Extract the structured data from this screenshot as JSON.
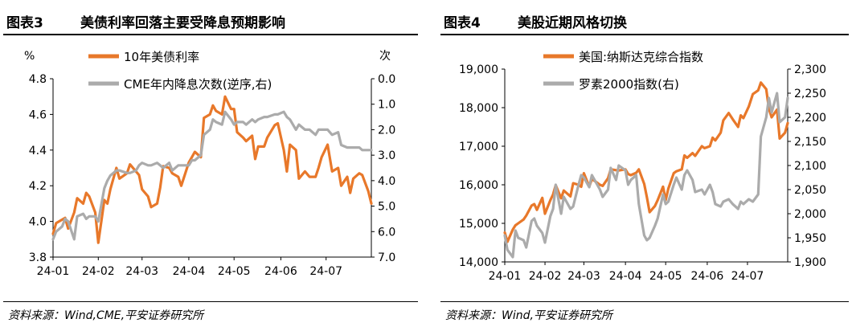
{
  "charts": [
    {
      "fig_label": "图表3",
      "title": "美债利率回落主要受降息预期影响",
      "source": "资料来源：Wind,CME,平安证券研究所",
      "left_unit": "%",
      "right_unit": "次",
      "legend": [
        "10年美债利率",
        "CME年内降息次数(逆序,右)"
      ],
      "colors": {
        "primary": "#E8782A",
        "secondary": "#ABABAB"
      }
    },
    {
      "fig_label": "图表4",
      "title": "美股近期风格切换",
      "source": "资料来源：Wind,平安证券研究所",
      "left_unit": "",
      "right_unit": "",
      "legend": [
        "美国:纳斯达克综合指数",
        "罗素2000指数(右)"
      ],
      "colors": {
        "primary": "#E8782A",
        "secondary": "#ABABAB"
      }
    }
  ],
  "chart_data": [
    {
      "type": "line",
      "x_ticks": [
        "24-01",
        "24-02",
        "24-03",
        "24-04",
        "24-05",
        "24-06",
        "24-07"
      ],
      "x_range": [
        "2024-01-02",
        "2024-07-31"
      ],
      "left_axis": {
        "ticks": [
          "3.8",
          "4.0",
          "4.2",
          "4.4",
          "4.6",
          "4.8"
        ],
        "range": [
          3.8,
          4.8
        ]
      },
      "right_axis": {
        "ticks": [
          "0.0",
          "1.0",
          "2.0",
          "3.0",
          "4.0",
          "5.0",
          "6.0",
          "7.0"
        ],
        "range": [
          0,
          7
        ],
        "inverted": true
      },
      "series": [
        {
          "name": "10年美债利率",
          "axis": "left",
          "x": [
            "2024-01-02",
            "2024-01-04",
            "2024-01-08",
            "2024-01-10",
            "2024-01-12",
            "2024-01-16",
            "2024-01-18",
            "2024-01-22",
            "2024-01-24",
            "2024-01-26",
            "2024-01-30",
            "2024-02-01",
            "2024-02-05",
            "2024-02-07",
            "2024-02-09",
            "2024-02-13",
            "2024-02-15",
            "2024-02-20",
            "2024-02-22",
            "2024-02-26",
            "2024-02-28",
            "2024-03-01",
            "2024-03-05",
            "2024-03-07",
            "2024-03-11",
            "2024-03-13",
            "2024-03-15",
            "2024-03-19",
            "2024-03-21",
            "2024-03-25",
            "2024-03-27",
            "2024-04-01",
            "2024-04-03",
            "2024-04-05",
            "2024-04-09",
            "2024-04-11",
            "2024-04-15",
            "2024-04-17",
            "2024-04-19",
            "2024-04-23",
            "2024-04-25",
            "2024-04-29",
            "2024-05-01",
            "2024-05-03",
            "2024-05-07",
            "2024-05-09",
            "2024-05-13",
            "2024-05-15",
            "2024-05-17",
            "2024-05-21",
            "2024-05-23",
            "2024-05-28",
            "2024-05-30",
            "2024-06-03",
            "2024-06-05",
            "2024-06-07",
            "2024-06-11",
            "2024-06-13",
            "2024-06-17",
            "2024-06-20",
            "2024-06-24",
            "2024-06-26",
            "2024-06-28",
            "2024-07-02",
            "2024-07-05",
            "2024-07-09",
            "2024-07-11",
            "2024-07-15",
            "2024-07-17",
            "2024-07-19",
            "2024-07-23",
            "2024-07-25",
            "2024-07-29",
            "2024-07-31"
          ],
          "values": [
            3.93,
            3.99,
            4.01,
            4.02,
            3.96,
            4.05,
            4.13,
            4.1,
            4.16,
            4.14,
            4.05,
            3.88,
            4.12,
            4.1,
            4.18,
            4.3,
            4.24,
            4.27,
            4.32,
            4.28,
            4.26,
            4.18,
            4.14,
            4.08,
            4.1,
            4.19,
            4.31,
            4.3,
            4.27,
            4.25,
            4.2,
            4.33,
            4.36,
            4.39,
            4.36,
            4.58,
            4.6,
            4.65,
            4.62,
            4.6,
            4.7,
            4.63,
            4.63,
            4.5,
            4.47,
            4.45,
            4.48,
            4.35,
            4.42,
            4.42,
            4.47,
            4.54,
            4.55,
            4.4,
            4.28,
            4.43,
            4.4,
            4.24,
            4.28,
            4.25,
            4.25,
            4.3,
            4.36,
            4.43,
            4.28,
            4.3,
            4.2,
            4.25,
            4.16,
            4.24,
            4.27,
            4.26,
            4.17,
            4.1
          ]
        },
        {
          "name": "CME年内降息次数(逆序,右)",
          "axis": "right",
          "x": [
            "2024-01-02",
            "2024-01-04",
            "2024-01-08",
            "2024-01-10",
            "2024-01-12",
            "2024-01-16",
            "2024-01-18",
            "2024-01-22",
            "2024-01-24",
            "2024-01-26",
            "2024-01-30",
            "2024-02-01",
            "2024-02-05",
            "2024-02-07",
            "2024-02-09",
            "2024-02-13",
            "2024-02-15",
            "2024-02-20",
            "2024-02-22",
            "2024-02-26",
            "2024-02-28",
            "2024-03-01",
            "2024-03-05",
            "2024-03-07",
            "2024-03-11",
            "2024-03-13",
            "2024-03-15",
            "2024-03-19",
            "2024-03-21",
            "2024-03-25",
            "2024-03-27",
            "2024-04-01",
            "2024-04-03",
            "2024-04-05",
            "2024-04-09",
            "2024-04-11",
            "2024-04-15",
            "2024-04-17",
            "2024-04-19",
            "2024-04-23",
            "2024-04-25",
            "2024-04-29",
            "2024-05-01",
            "2024-05-03",
            "2024-05-07",
            "2024-05-09",
            "2024-05-13",
            "2024-05-15",
            "2024-05-17",
            "2024-05-21",
            "2024-05-23",
            "2024-05-28",
            "2024-05-30",
            "2024-06-03",
            "2024-06-05",
            "2024-06-07",
            "2024-06-11",
            "2024-06-13",
            "2024-06-17",
            "2024-06-20",
            "2024-06-24",
            "2024-06-26",
            "2024-06-28",
            "2024-07-02",
            "2024-07-05",
            "2024-07-09",
            "2024-07-11",
            "2024-07-15",
            "2024-07-17",
            "2024-07-19",
            "2024-07-23",
            "2024-07-25",
            "2024-07-29",
            "2024-07-31"
          ],
          "values": [
            6.3,
            6.0,
            5.8,
            5.5,
            5.6,
            6.3,
            5.4,
            5.3,
            5.5,
            5.4,
            5.4,
            5.6,
            4.3,
            4.0,
            3.8,
            3.6,
            3.6,
            3.7,
            3.7,
            3.6,
            3.4,
            3.3,
            3.4,
            3.4,
            3.3,
            3.4,
            3.5,
            3.3,
            3.6,
            3.4,
            3.4,
            3.4,
            3.2,
            3.2,
            3.0,
            2.2,
            2.0,
            1.6,
            1.7,
            1.8,
            1.3,
            1.6,
            1.8,
            1.7,
            1.7,
            1.8,
            1.6,
            1.7,
            1.6,
            1.5,
            1.5,
            1.4,
            1.4,
            1.3,
            1.5,
            1.6,
            2.0,
            1.8,
            2.0,
            2.0,
            2.2,
            2.0,
            2.0,
            2.0,
            2.2,
            2.1,
            2.6,
            2.7,
            2.7,
            2.7,
            2.7,
            2.8,
            2.8,
            2.8
          ]
        }
      ]
    },
    {
      "type": "line",
      "x_ticks": [
        "24-01",
        "24-02",
        "24-03",
        "24-04",
        "24-05",
        "24-06",
        "24-07"
      ],
      "x_range": [
        "2024-01-02",
        "2024-07-31"
      ],
      "left_axis": {
        "ticks": [
          "14,000",
          "15,000",
          "16,000",
          "17,000",
          "18,000",
          "19,000"
        ],
        "range": [
          14000,
          19000
        ]
      },
      "right_axis": {
        "ticks": [
          "1,900",
          "1,950",
          "2,000",
          "2,050",
          "2,100",
          "2,150",
          "2,200",
          "2,250",
          "2,300"
        ],
        "range": [
          1900,
          2300
        ]
      },
      "series": [
        {
          "name": "美国:纳斯达克综合指数",
          "axis": "left",
          "x": [
            "2024-01-02",
            "2024-01-04",
            "2024-01-08",
            "2024-01-10",
            "2024-01-12",
            "2024-01-16",
            "2024-01-18",
            "2024-01-22",
            "2024-01-24",
            "2024-01-26",
            "2024-01-30",
            "2024-02-01",
            "2024-02-05",
            "2024-02-07",
            "2024-02-09",
            "2024-02-13",
            "2024-02-15",
            "2024-02-20",
            "2024-02-22",
            "2024-02-26",
            "2024-02-28",
            "2024-03-01",
            "2024-03-05",
            "2024-03-07",
            "2024-03-11",
            "2024-03-13",
            "2024-03-15",
            "2024-03-19",
            "2024-03-21",
            "2024-03-25",
            "2024-03-27",
            "2024-04-01",
            "2024-04-03",
            "2024-04-05",
            "2024-04-09",
            "2024-04-11",
            "2024-04-15",
            "2024-04-17",
            "2024-04-19",
            "2024-04-23",
            "2024-04-25",
            "2024-04-29",
            "2024-05-01",
            "2024-05-03",
            "2024-05-07",
            "2024-05-09",
            "2024-05-13",
            "2024-05-15",
            "2024-05-17",
            "2024-05-21",
            "2024-05-23",
            "2024-05-28",
            "2024-05-30",
            "2024-06-03",
            "2024-06-05",
            "2024-06-07",
            "2024-06-11",
            "2024-06-13",
            "2024-06-17",
            "2024-06-20",
            "2024-06-24",
            "2024-06-26",
            "2024-06-28",
            "2024-07-02",
            "2024-07-05",
            "2024-07-09",
            "2024-07-11",
            "2024-07-15",
            "2024-07-17",
            "2024-07-19",
            "2024-07-23",
            "2024-07-25",
            "2024-07-29",
            "2024-07-31"
          ],
          "values": [
            14760,
            14520,
            14840,
            14950,
            15000,
            15100,
            15200,
            15460,
            15500,
            15350,
            15660,
            15250,
            15600,
            15750,
            15990,
            15650,
            15850,
            15700,
            16040,
            16000,
            15950,
            16300,
            15950,
            16150,
            16050,
            16000,
            15970,
            16170,
            16400,
            16380,
            16370,
            16400,
            16280,
            16250,
            16310,
            16400,
            16020,
            15680,
            15290,
            15450,
            15600,
            15950,
            15600,
            15900,
            16300,
            16350,
            16400,
            16760,
            16700,
            16820,
            16750,
            17000,
            16950,
            17000,
            17220,
            17150,
            17350,
            17670,
            17860,
            17700,
            17500,
            17800,
            17730,
            18030,
            18350,
            18450,
            18650,
            18480,
            17980,
            17750,
            17950,
            17200,
            17350,
            17600
          ]
        },
        {
          "name": "罗素2000指数(右)",
          "axis": "right",
          "x": [
            "2024-01-02",
            "2024-01-04",
            "2024-01-08",
            "2024-01-10",
            "2024-01-12",
            "2024-01-16",
            "2024-01-18",
            "2024-01-22",
            "2024-01-24",
            "2024-01-26",
            "2024-01-30",
            "2024-02-01",
            "2024-02-05",
            "2024-02-07",
            "2024-02-09",
            "2024-02-13",
            "2024-02-15",
            "2024-02-20",
            "2024-02-22",
            "2024-02-26",
            "2024-02-28",
            "2024-03-01",
            "2024-03-05",
            "2024-03-07",
            "2024-03-11",
            "2024-03-13",
            "2024-03-15",
            "2024-03-19",
            "2024-03-21",
            "2024-03-25",
            "2024-03-27",
            "2024-04-01",
            "2024-04-03",
            "2024-04-05",
            "2024-04-09",
            "2024-04-11",
            "2024-04-15",
            "2024-04-17",
            "2024-04-19",
            "2024-04-23",
            "2024-04-25",
            "2024-04-29",
            "2024-05-01",
            "2024-05-03",
            "2024-05-07",
            "2024-05-09",
            "2024-05-13",
            "2024-05-15",
            "2024-05-17",
            "2024-05-21",
            "2024-05-23",
            "2024-05-28",
            "2024-05-30",
            "2024-06-03",
            "2024-06-05",
            "2024-06-07",
            "2024-06-11",
            "2024-06-13",
            "2024-06-17",
            "2024-06-20",
            "2024-06-24",
            "2024-06-26",
            "2024-06-28",
            "2024-07-02",
            "2024-07-05",
            "2024-07-09",
            "2024-07-11",
            "2024-07-15",
            "2024-07-17",
            "2024-07-19",
            "2024-07-23",
            "2024-07-25",
            "2024-07-29",
            "2024-07-31"
          ],
          "values": [
            1955,
            1925,
            1910,
            1965,
            1950,
            1945,
            1930,
            1985,
            1990,
            1975,
            1960,
            1940,
            1995,
            2010,
            2060,
            2000,
            2035,
            2010,
            2015,
            2060,
            2080,
            2075,
            2055,
            2080,
            2060,
            2050,
            2035,
            2050,
            2095,
            2070,
            2100,
            2090,
            2060,
            2070,
            2080,
            2020,
            1955,
            1945,
            1950,
            1975,
            1990,
            2040,
            2020,
            2025,
            2060,
            2075,
            2050,
            2080,
            2090,
            2070,
            2045,
            2050,
            2040,
            2060,
            2045,
            2020,
            2015,
            2025,
            2030,
            2020,
            2010,
            2025,
            2020,
            2030,
            2025,
            2040,
            2160,
            2200,
            2240,
            2210,
            2250,
            2190,
            2200,
            2240
          ]
        }
      ]
    }
  ]
}
